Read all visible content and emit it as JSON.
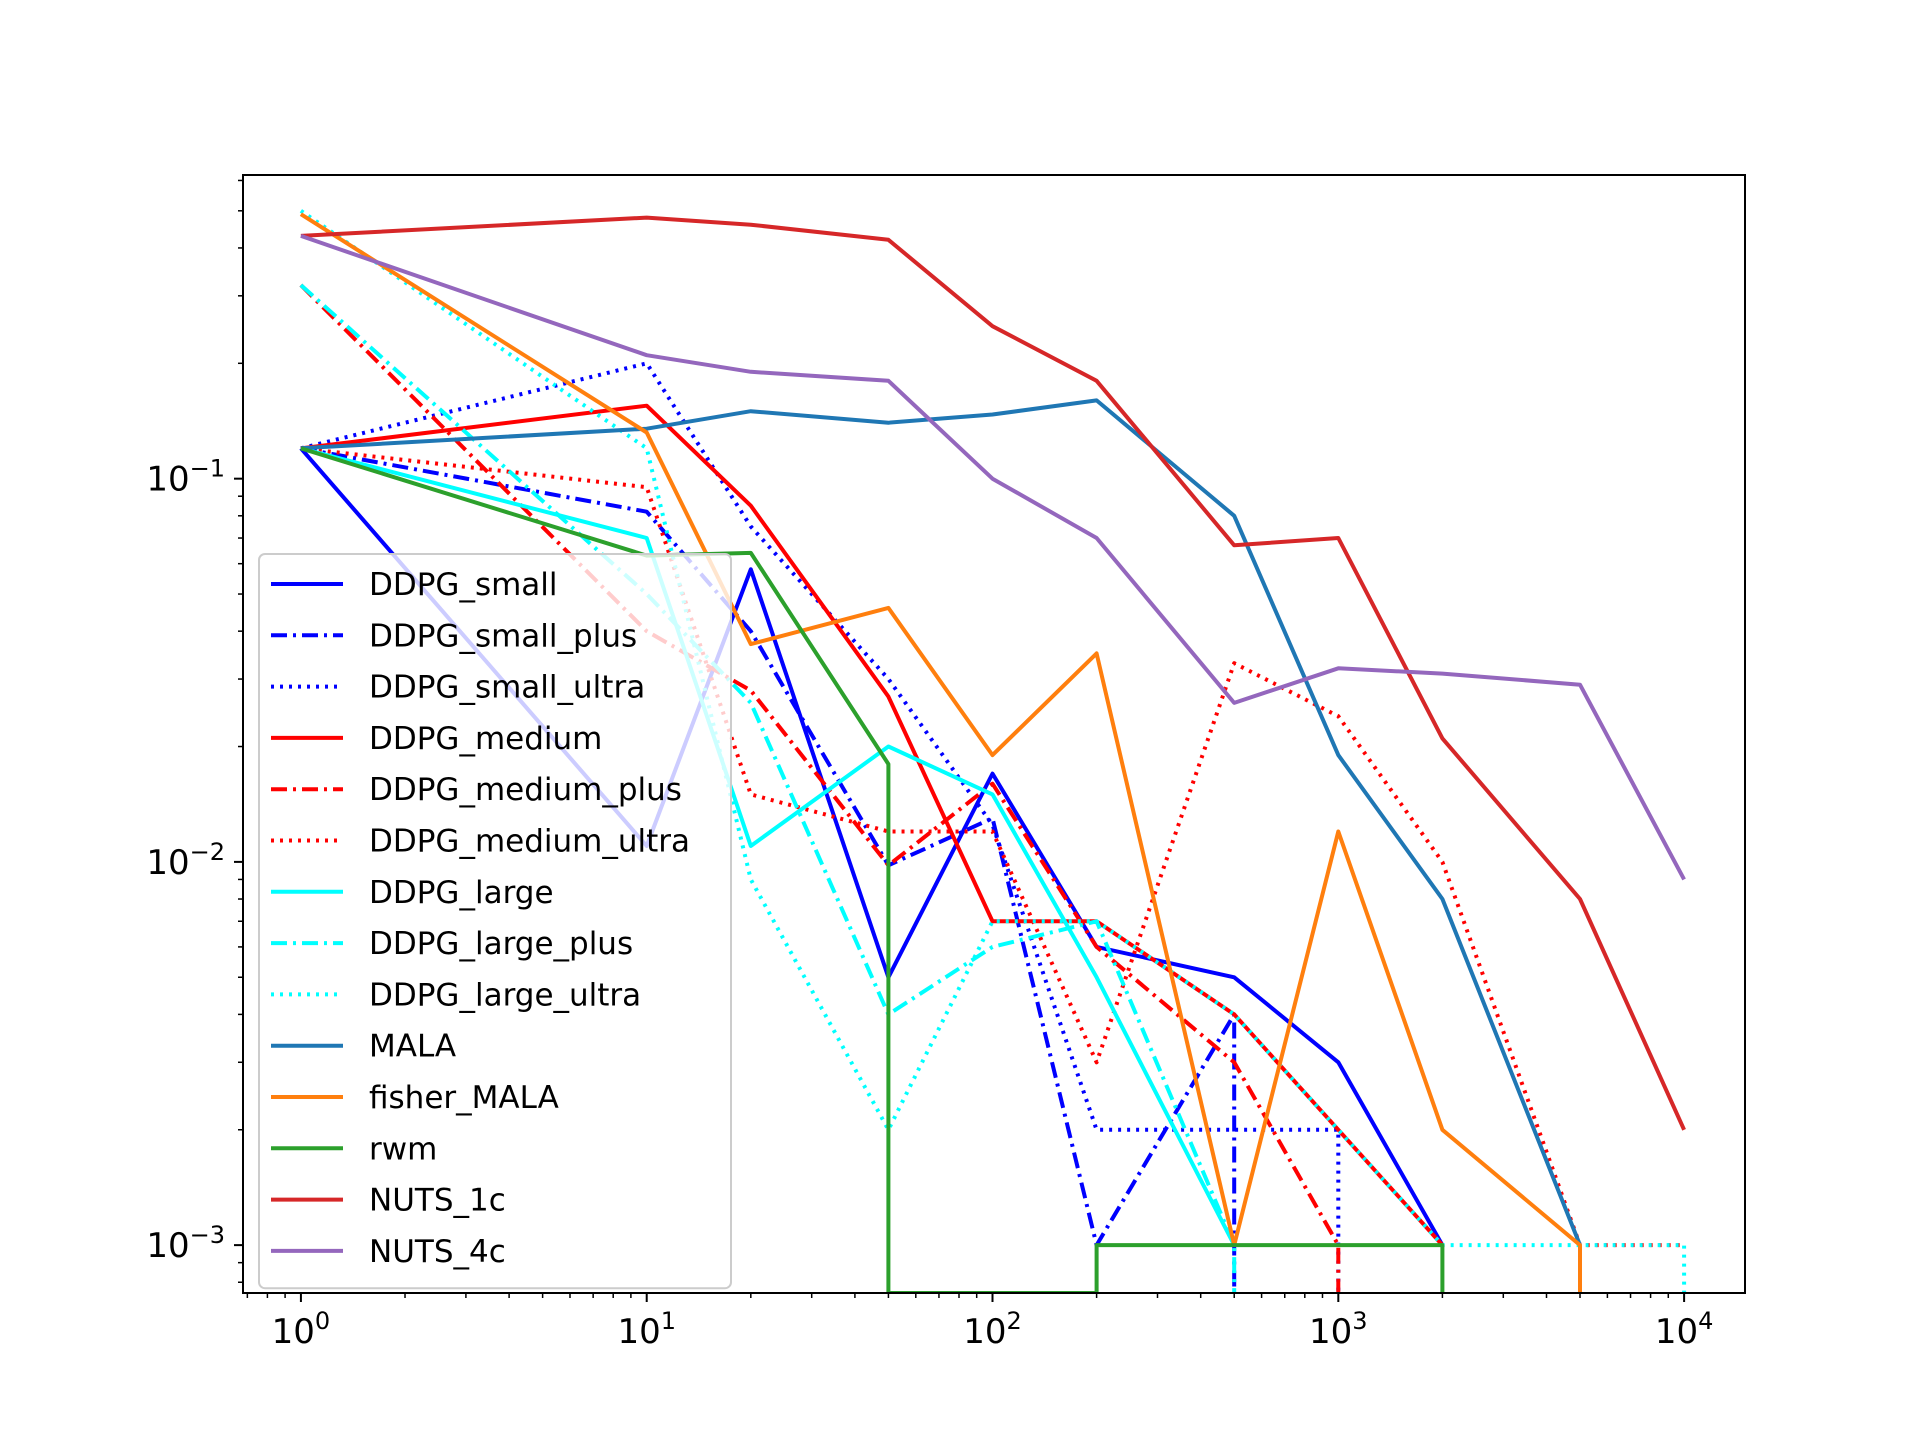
{
  "chart_data": {
    "type": "line",
    "title": "",
    "xlabel": "",
    "ylabel": "",
    "xscale": "log",
    "yscale": "log",
    "xlim": [
      0.68,
      15000
    ],
    "ylim": [
      0.00075,
      0.62
    ],
    "grid": false,
    "legend_placement": "lower-left",
    "x_ticks": [
      {
        "value": 1,
        "base": "10",
        "exp": "0"
      },
      {
        "value": 10,
        "base": "10",
        "exp": "1"
      },
      {
        "value": 100,
        "base": "10",
        "exp": "2"
      },
      {
        "value": 1000,
        "base": "10",
        "exp": "3"
      },
      {
        "value": 10000,
        "base": "10",
        "exp": "4"
      }
    ],
    "y_ticks": [
      {
        "value": 0.001,
        "base": "10",
        "exp": "−3"
      },
      {
        "value": 0.01,
        "base": "10",
        "exp": "−2"
      },
      {
        "value": 0.1,
        "base": "10",
        "exp": "−1"
      }
    ],
    "series": [
      {
        "name": "DDPG_small",
        "color": "#0000ff",
        "dash": "solid",
        "x": [
          1,
          10,
          20,
          50,
          100,
          200,
          500,
          1000,
          2000
        ],
        "y": [
          0.12,
          0.011,
          0.058,
          0.005,
          0.017,
          0.006,
          0.005,
          0.003,
          0.001
        ]
      },
      {
        "name": "DDPG_small_plus",
        "color": "#0000ff",
        "dash": "dashdot",
        "x": [
          1,
          10,
          20,
          50,
          100,
          200,
          500,
          500
        ],
        "y": [
          0.12,
          0.082,
          0.04,
          0.0098,
          0.013,
          0.001,
          0.004,
          0.00075
        ]
      },
      {
        "name": "DDPG_small_ultra",
        "color": "#0000ff",
        "dash": "dotted",
        "x": [
          1,
          10,
          20,
          50,
          100,
          200,
          500,
          1000,
          1000
        ],
        "y": [
          0.12,
          0.2,
          0.075,
          0.03,
          0.0125,
          0.002,
          0.002,
          0.002,
          0.00075
        ]
      },
      {
        "name": "DDPG_medium",
        "color": "#ff0000",
        "dash": "solid",
        "x": [
          1,
          10,
          20,
          50,
          100,
          200,
          500,
          1000,
          2000
        ],
        "y": [
          0.12,
          0.155,
          0.085,
          0.027,
          0.007,
          0.007,
          0.004,
          0.002,
          0.001
        ]
      },
      {
        "name": "DDPG_medium_plus",
        "color": "#ff0000",
        "dash": "dashdot",
        "x": [
          1,
          10,
          20,
          50,
          100,
          200,
          500,
          1000,
          1000
        ],
        "y": [
          0.32,
          0.04,
          0.028,
          0.0098,
          0.016,
          0.006,
          0.003,
          0.001,
          0.00075
        ]
      },
      {
        "name": "DDPG_medium_ultra",
        "color": "#ff0000",
        "dash": "dotted",
        "x": [
          1,
          10,
          20,
          50,
          100,
          200,
          500,
          1000,
          2000,
          5000,
          10000
        ],
        "y": [
          0.12,
          0.095,
          0.015,
          0.012,
          0.012,
          0.003,
          0.033,
          0.024,
          0.01,
          0.001,
          0.001
        ]
      },
      {
        "name": "DDPG_large",
        "color": "#00ffff",
        "dash": "solid",
        "x": [
          1,
          10,
          20,
          50,
          100,
          200,
          500
        ],
        "y": [
          0.12,
          0.07,
          0.011,
          0.02,
          0.015,
          0.005,
          0.001
        ]
      },
      {
        "name": "DDPG_large_plus",
        "color": "#00ffff",
        "dash": "dashdot",
        "x": [
          1,
          10,
          20,
          50,
          100,
          200,
          500,
          500
        ],
        "y": [
          0.32,
          0.05,
          0.026,
          0.004,
          0.006,
          0.007,
          0.001,
          0.00075
        ]
      },
      {
        "name": "DDPG_large_ultra",
        "color": "#00ffff",
        "dash": "dotted",
        "x": [
          1,
          10,
          20,
          50,
          100,
          200,
          500,
          1000,
          2000,
          5000,
          10000,
          10000
        ],
        "y": [
          0.5,
          0.12,
          0.009,
          0.002,
          0.007,
          0.007,
          0.004,
          0.002,
          0.001,
          0.001,
          0.001,
          0.00075
        ]
      },
      {
        "name": "MALA",
        "color": "#1f77b4",
        "dash": "solid",
        "x": [
          1,
          10,
          20,
          50,
          100,
          200,
          500,
          1000,
          2000,
          5000
        ],
        "y": [
          0.12,
          0.135,
          0.15,
          0.14,
          0.147,
          0.16,
          0.08,
          0.019,
          0.008,
          0.001
        ]
      },
      {
        "name": "fisher_MALA",
        "color": "#ff7f0e",
        "dash": "solid",
        "x": [
          1,
          10,
          20,
          50,
          100,
          200,
          500,
          1000,
          2000,
          5000,
          5000
        ],
        "y": [
          0.49,
          0.132,
          0.037,
          0.046,
          0.019,
          0.035,
          0.001,
          0.012,
          0.002,
          0.001,
          0.00075
        ]
      },
      {
        "name": "rwm",
        "color": "#2ca02c",
        "dash": "solid",
        "x": [
          1,
          10,
          20,
          50,
          50,
          200,
          200,
          500,
          1000,
          2000,
          2000
        ],
        "y": [
          0.12,
          0.063,
          0.064,
          0.018,
          0.00075,
          0.00075,
          0.001,
          0.001,
          0.001,
          0.001,
          0.00075
        ]
      },
      {
        "name": "NUTS_1c",
        "color": "#d62728",
        "dash": "solid",
        "x": [
          1,
          10,
          20,
          50,
          100,
          200,
          500,
          1000,
          2000,
          5000,
          10000
        ],
        "y": [
          0.43,
          0.48,
          0.46,
          0.42,
          0.25,
          0.18,
          0.067,
          0.07,
          0.021,
          0.008,
          0.002
        ]
      },
      {
        "name": "NUTS_4c",
        "color": "#9467bd",
        "dash": "solid",
        "x": [
          1,
          10,
          20,
          50,
          100,
          200,
          500,
          1000,
          2000,
          5000,
          10000
        ],
        "y": [
          0.43,
          0.21,
          0.19,
          0.18,
          0.1,
          0.07,
          0.026,
          0.032,
          0.031,
          0.029,
          0.009
        ]
      }
    ]
  }
}
